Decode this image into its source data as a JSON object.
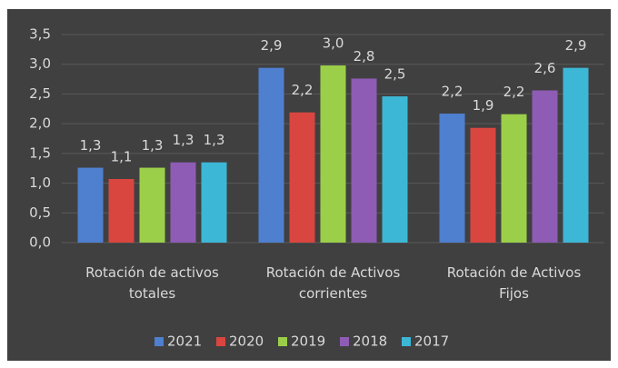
{
  "chart_data": {
    "type": "bar",
    "categories": [
      "Rotación de activos totales",
      "Rotación de Activos corrientes",
      "Rotación de Activos Fijos"
    ],
    "series": [
      {
        "name": "2021",
        "color": "#4f7fcf",
        "values": [
          1.26,
          2.94,
          2.17
        ],
        "value_labels": [
          "1,3",
          "2,9",
          "2,2"
        ]
      },
      {
        "name": "2020",
        "color": "#d9463f",
        "values": [
          1.07,
          2.19,
          1.93
        ],
        "value_labels": [
          "1,1",
          "2,2",
          "1,9"
        ]
      },
      {
        "name": "2019",
        "color": "#9bcf4a",
        "values": [
          1.26,
          2.98,
          2.16
        ],
        "value_labels": [
          "1,3",
          "3,0",
          "2,2"
        ]
      },
      {
        "name": "2018",
        "color": "#8e5cb5",
        "values": [
          1.35,
          2.76,
          2.56
        ],
        "value_labels": [
          "1,3",
          "2,8",
          "2,6"
        ]
      },
      {
        "name": "2017",
        "color": "#3db7d6",
        "values": [
          1.35,
          2.46,
          2.94
        ],
        "value_labels": [
          "1,3",
          "2,5",
          "2,9"
        ]
      }
    ],
    "ylim": [
      0,
      3.5
    ],
    "yticks": [
      {
        "value": 0,
        "label": "0,0"
      },
      {
        "value": 0.5,
        "label": "0,5"
      },
      {
        "value": 1,
        "label": "1,0"
      },
      {
        "value": 1.5,
        "label": "1,5"
      },
      {
        "value": 2,
        "label": "2,0"
      },
      {
        "value": 2.5,
        "label": "2,5"
      },
      {
        "value": 3,
        "label": "3,0"
      },
      {
        "value": 3.5,
        "label": "3,5"
      }
    ],
    "grid": true,
    "legend": "bottom"
  }
}
